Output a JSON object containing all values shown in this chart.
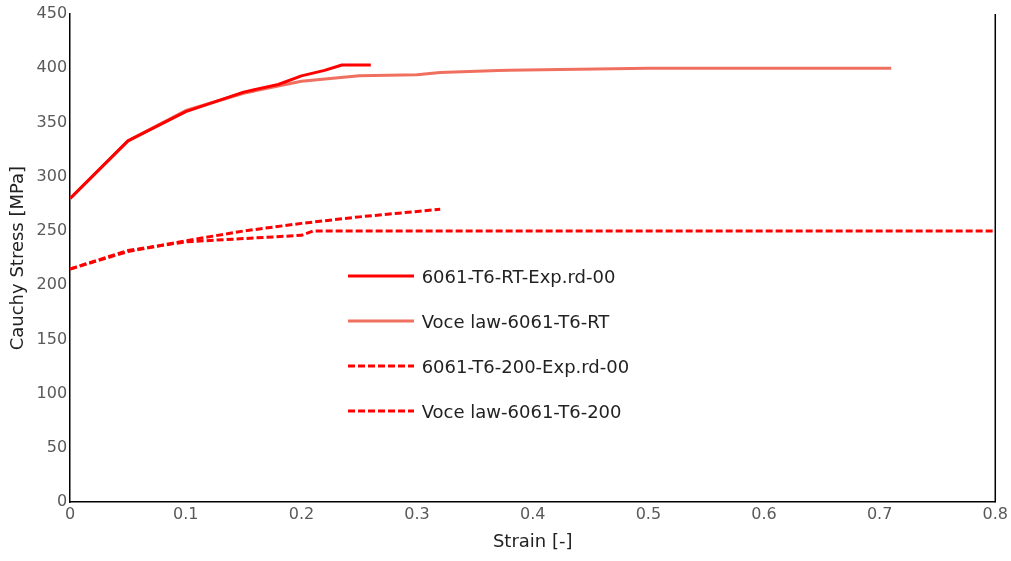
{
  "chart_data": {
    "type": "line",
    "xlabel": "Strain [-]",
    "ylabel": "Cauchy Stress [MPa]",
    "xlim": [
      0,
      0.8
    ],
    "xticks": [
      {
        "value": 0,
        "label": "0"
      },
      0.1,
      0.2,
      0.3,
      0.4,
      0.5,
      0.6,
      0.7,
      0.8
    ],
    "ylim": [
      0,
      450
    ],
    "yticks": [
      0,
      50,
      100,
      150,
      200,
      250,
      300,
      350,
      400,
      450
    ],
    "grid": false,
    "legend": "center",
    "marker": "none",
    "series": [
      {
        "name": "6061-T6-RT-Exp.rd-00",
        "color": "#ff0000",
        "line_style": "solid",
        "x": [
          0,
          0.05,
          0.1,
          0.15,
          0.18,
          0.2,
          0.22,
          0.235,
          0.26
        ],
        "values": [
          280,
          333,
          360,
          378,
          385,
          393,
          398,
          403,
          403
        ]
      },
      {
        "name": "Voce law-6061-T6-RT",
        "color": "#f07060",
        "line_style": "solid",
        "x": [
          0,
          0.05,
          0.1,
          0.15,
          0.2,
          0.25,
          0.3,
          0.32,
          0.37,
          0.5,
          0.71
        ],
        "values": [
          280,
          333,
          361,
          377,
          388,
          393,
          394,
          396,
          398,
          400,
          400
        ]
      },
      {
        "name": "6061-T6-200-Exp.rd-00",
        "color": "#ff0000",
        "line_style": "dashed",
        "x": [
          0,
          0.05,
          0.1,
          0.15,
          0.2,
          0.25,
          0.3,
          0.32
        ],
        "values": [
          215,
          231,
          241,
          250,
          257,
          263,
          268,
          270
        ]
      },
      {
        "name": "Voce law-6061-T6-200",
        "color": "#ff0000",
        "line_style": "dashed",
        "x": [
          0,
          0.05,
          0.1,
          0.15,
          0.2,
          0.21,
          0.4,
          0.8
        ],
        "values": [
          215,
          232,
          240,
          243,
          246,
          250,
          250,
          250
        ]
      }
    ]
  }
}
